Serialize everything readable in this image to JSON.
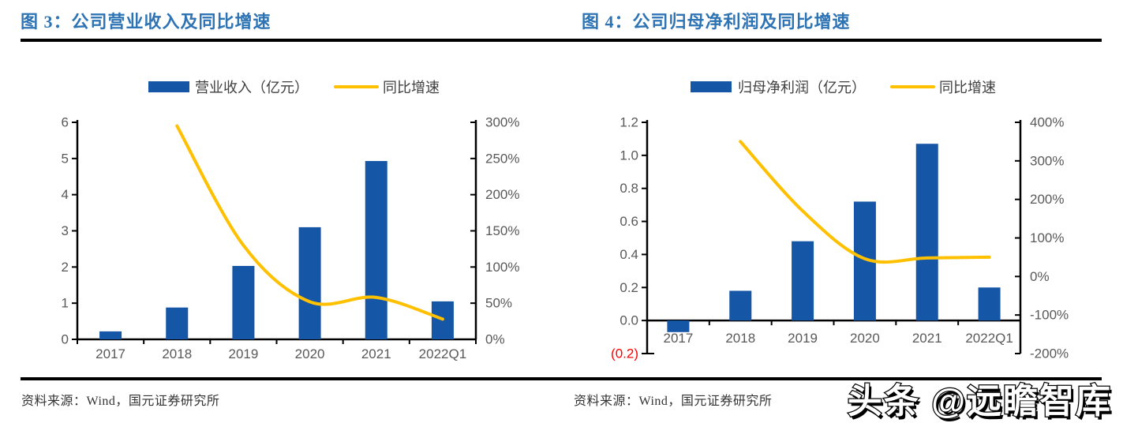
{
  "figures": [
    {
      "title": "图 3：公司营业收入及同比增速",
      "source": "资料来源：Wind，国元证券研究所"
    },
    {
      "title": "图 4：公司归母净利润及同比增速",
      "source": "资料来源：Wind，国元证券研究所"
    }
  ],
  "watermark": "头条 @远瞻智库",
  "colors": {
    "bar": "#1556A6",
    "line": "#FFC000",
    "title": "#2E74B5",
    "axis_text": "#595959",
    "legend_text": "#404040",
    "negative_tick": "#FF0000",
    "source_text": "#333333",
    "rule": "#000000"
  },
  "chart_data": [
    {
      "type": "bar+line",
      "title": "图 3：公司营业收入及同比增速",
      "categories": [
        "2017",
        "2018",
        "2019",
        "2020",
        "2021",
        "2022Q1"
      ],
      "series": [
        {
          "name": "营业收入（亿元）",
          "type": "bar",
          "axis": "left",
          "values": [
            0.22,
            0.88,
            2.03,
            3.1,
            4.93,
            1.05
          ]
        },
        {
          "name": "同比增速",
          "type": "line",
          "axis": "right",
          "unit": "%",
          "values": [
            null,
            295,
            130,
            52,
            58,
            28
          ]
        }
      ],
      "left_axis": {
        "min": 0,
        "max": 6,
        "step": 1,
        "tick_labels": [
          "6",
          "5",
          "4",
          "3",
          "2",
          "1",
          "0"
        ]
      },
      "right_axis": {
        "min": 0,
        "max": 300,
        "step": 50,
        "tick_labels": [
          "300%",
          "250%",
          "200%",
          "150%",
          "100%",
          "50%",
          "0%"
        ]
      },
      "xlabel": "",
      "ylabel": "",
      "legend_position": "top",
      "grid": false
    },
    {
      "type": "bar+line",
      "title": "图 4：公司归母净利润及同比增速",
      "categories": [
        "2017",
        "2018",
        "2019",
        "2020",
        "2021",
        "2022Q1"
      ],
      "series": [
        {
          "name": "归母净利润（亿元）",
          "type": "bar",
          "axis": "left",
          "values": [
            -0.07,
            0.18,
            0.48,
            0.72,
            1.07,
            0.2
          ]
        },
        {
          "name": "同比增速",
          "type": "line",
          "axis": "right",
          "unit": "%",
          "values": [
            null,
            350,
            170,
            46,
            48,
            50
          ]
        }
      ],
      "left_axis": {
        "min": -0.2,
        "max": 1.2,
        "step": 0.2,
        "tick_labels": [
          "1.2",
          "1.0",
          "0.8",
          "0.6",
          "0.4",
          "0.2",
          "0.0",
          "(0.2)"
        ]
      },
      "right_axis": {
        "min": -200,
        "max": 400,
        "step": 100,
        "tick_labels": [
          "400%",
          "300%",
          "200%",
          "100%",
          "0%",
          "-100%",
          "-200%"
        ]
      },
      "xlabel": "",
      "ylabel": "",
      "legend_position": "top",
      "grid": false
    }
  ]
}
